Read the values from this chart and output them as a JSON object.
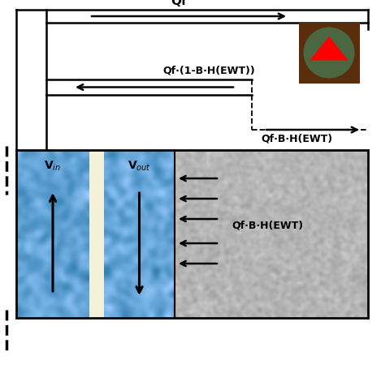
{
  "bg_color": "#ffffff",
  "reservoir_fill": "#b8b8b8",
  "blue_fill": "#5b9bd5",
  "beige_fill": "#f5f0d8",
  "pump_square_color": "#5a2d0c",
  "pump_circle_color": "#4a6741",
  "pump_triangle_color": "#ff0000",
  "label_Qf": "Qf",
  "label_return": "Qf·(1-B·H(EWT))",
  "label_bottom_right": "Qf·B·H(EWT)",
  "label_internal": "Qf·B·H(EWT)",
  "label_vin": "V$_{in}$",
  "label_vout": "V$_{out}$",
  "border_color": "#000000",
  "font_size": 9,
  "font_size_labels": 10
}
